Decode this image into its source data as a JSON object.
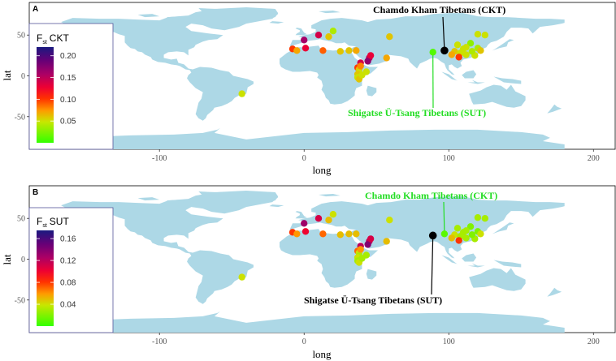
{
  "chart_data": [
    {
      "type": "scatter",
      "panel_label": "A",
      "xlabel": "long",
      "ylabel": "lat",
      "xlim": [
        -190,
        215
      ],
      "ylim": [
        -90,
        90
      ],
      "x_ticks": [
        -100,
        0,
        100,
        200
      ],
      "y_ticks": [
        -50,
        0,
        50
      ],
      "legend": {
        "title_main": "F",
        "title_sub": "st",
        "title_rest": "CKT",
        "ticks": [
          "0.20",
          "0.15",
          "0.10",
          "0.05"
        ],
        "tick_values": [
          0.2,
          0.15,
          0.1,
          0.05
        ],
        "range": [
          0.0,
          0.22
        ],
        "placement": "left"
      },
      "annotations": [
        {
          "text": "Chamdo Kham Tibetans (CKT)",
          "color": "#000000",
          "point": [
            97,
            31
          ]
        },
        {
          "text": "Shigatse Ü-Tsang Tibetans (SUT)",
          "color": "#22dd22",
          "point": [
            89,
            29
          ]
        }
      ],
      "reference": {
        "lon": 97,
        "lat": 31,
        "color": "#000000"
      },
      "points": [
        {
          "lon": 89,
          "lat": 29,
          "v": 0.01
        },
        {
          "lon": -43,
          "lat": -22,
          "v": 0.05
        },
        {
          "lon": 10,
          "lat": 50,
          "v": 0.14
        },
        {
          "lon": 20,
          "lat": 55,
          "v": 0.04
        },
        {
          "lon": 17,
          "lat": 48,
          "v": 0.06
        },
        {
          "lon": 0,
          "lat": 44,
          "v": 0.16
        },
        {
          "lon": 1,
          "lat": 34,
          "v": 0.13
        },
        {
          "lon": -8,
          "lat": 33,
          "v": 0.1
        },
        {
          "lon": -5,
          "lat": 31,
          "v": 0.07
        },
        {
          "lon": 13,
          "lat": 31,
          "v": 0.09
        },
        {
          "lon": 25,
          "lat": 30,
          "v": 0.06
        },
        {
          "lon": 31,
          "lat": 31,
          "v": 0.06
        },
        {
          "lon": 59,
          "lat": 48,
          "v": 0.06
        },
        {
          "lon": 36,
          "lat": 31,
          "v": 0.07
        },
        {
          "lon": 45,
          "lat": 22,
          "v": 0.15
        },
        {
          "lon": 44,
          "lat": 18,
          "v": 0.17
        },
        {
          "lon": 46,
          "lat": 25,
          "v": 0.13
        },
        {
          "lon": 39,
          "lat": 16,
          "v": 0.14
        },
        {
          "lon": 37,
          "lat": 10,
          "v": 0.1
        },
        {
          "lon": 38,
          "lat": 8,
          "v": 0.06
        },
        {
          "lon": 38,
          "lat": 4,
          "v": 0.05
        },
        {
          "lon": 37,
          "lat": 2,
          "v": 0.06
        },
        {
          "lon": 37,
          "lat": -2,
          "v": 0.05
        },
        {
          "lon": 38,
          "lat": -4,
          "v": 0.06
        },
        {
          "lon": 40,
          "lat": 1,
          "v": 0.05
        },
        {
          "lon": 43,
          "lat": 5,
          "v": 0.05
        },
        {
          "lon": 39,
          "lat": 12,
          "v": 0.08
        },
        {
          "lon": 57,
          "lat": 22,
          "v": 0.07
        },
        {
          "lon": 120,
          "lat": 51,
          "v": 0.05
        },
        {
          "lon": 125,
          "lat": 50,
          "v": 0.05
        },
        {
          "lon": 115,
          "lat": 40,
          "v": 0.03
        },
        {
          "lon": 106,
          "lat": 38,
          "v": 0.05
        },
        {
          "lon": 112,
          "lat": 35,
          "v": 0.05
        },
        {
          "lon": 120,
          "lat": 34,
          "v": 0.04
        },
        {
          "lon": 110,
          "lat": 33,
          "v": 0.05
        },
        {
          "lon": 104,
          "lat": 30,
          "v": 0.06
        },
        {
          "lon": 108,
          "lat": 28,
          "v": 0.05
        },
        {
          "lon": 102,
          "lat": 26,
          "v": 0.07
        },
        {
          "lon": 112,
          "lat": 26,
          "v": 0.05
        },
        {
          "lon": 107,
          "lat": 23,
          "v": 0.1
        },
        {
          "lon": 118,
          "lat": 25,
          "v": 0.05
        },
        {
          "lon": 122,
          "lat": 31,
          "v": 0.06
        },
        {
          "lon": 116,
          "lat": 30,
          "v": 0.04
        }
      ]
    },
    {
      "type": "scatter",
      "panel_label": "B",
      "xlabel": "long",
      "ylabel": "lat",
      "xlim": [
        -190,
        215
      ],
      "ylim": [
        -90,
        90
      ],
      "x_ticks": [
        -100,
        0,
        100,
        200
      ],
      "y_ticks": [
        -50,
        0,
        50
      ],
      "legend": {
        "title_main": "F",
        "title_sub": "st",
        "title_rest": "SUT",
        "ticks": [
          "0.16",
          "0.12",
          "0.08",
          "0.04"
        ],
        "tick_values": [
          0.16,
          0.12,
          0.08,
          0.04
        ],
        "range": [
          0.0,
          0.175
        ],
        "placement": "left"
      },
      "annotations": [
        {
          "text": "Chamdo Kham Tibetans (CKT)",
          "color": "#22dd22",
          "point": [
            97,
            31
          ]
        },
        {
          "text": "Shigatse Ü-Tsang Tibetans (SUT)",
          "color": "#000000",
          "point": [
            89,
            29
          ]
        }
      ],
      "reference": {
        "lon": 89,
        "lat": 29,
        "color": "#000000"
      },
      "points": [
        {
          "lon": 97,
          "lat": 31,
          "v": 0.01
        },
        {
          "lon": -43,
          "lat": -22,
          "v": 0.04
        },
        {
          "lon": 10,
          "lat": 50,
          "v": 0.11
        },
        {
          "lon": 20,
          "lat": 55,
          "v": 0.04
        },
        {
          "lon": 17,
          "lat": 48,
          "v": 0.05
        },
        {
          "lon": 0,
          "lat": 44,
          "v": 0.13
        },
        {
          "lon": 1,
          "lat": 34,
          "v": 0.1
        },
        {
          "lon": -8,
          "lat": 33,
          "v": 0.08
        },
        {
          "lon": -5,
          "lat": 31,
          "v": 0.06
        },
        {
          "lon": 13,
          "lat": 31,
          "v": 0.07
        },
        {
          "lon": 25,
          "lat": 30,
          "v": 0.05
        },
        {
          "lon": 31,
          "lat": 31,
          "v": 0.05
        },
        {
          "lon": 59,
          "lat": 48,
          "v": 0.04
        },
        {
          "lon": 36,
          "lat": 31,
          "v": 0.05
        },
        {
          "lon": 45,
          "lat": 22,
          "v": 0.12
        },
        {
          "lon": 44,
          "lat": 18,
          "v": 0.14
        },
        {
          "lon": 46,
          "lat": 25,
          "v": 0.11
        },
        {
          "lon": 39,
          "lat": 16,
          "v": 0.12
        },
        {
          "lon": 37,
          "lat": 10,
          "v": 0.07
        },
        {
          "lon": 38,
          "lat": 8,
          "v": 0.04
        },
        {
          "lon": 38,
          "lat": 4,
          "v": 0.03
        },
        {
          "lon": 37,
          "lat": 2,
          "v": 0.04
        },
        {
          "lon": 37,
          "lat": -2,
          "v": 0.03
        },
        {
          "lon": 38,
          "lat": -4,
          "v": 0.04
        },
        {
          "lon": 40,
          "lat": 1,
          "v": 0.03
        },
        {
          "lon": 43,
          "lat": 5,
          "v": 0.03
        },
        {
          "lon": 39,
          "lat": 12,
          "v": 0.06
        },
        {
          "lon": 57,
          "lat": 22,
          "v": 0.05
        },
        {
          "lon": 120,
          "lat": 51,
          "v": 0.03
        },
        {
          "lon": 125,
          "lat": 50,
          "v": 0.03
        },
        {
          "lon": 115,
          "lat": 40,
          "v": 0.02
        },
        {
          "lon": 106,
          "lat": 38,
          "v": 0.03
        },
        {
          "lon": 112,
          "lat": 35,
          "v": 0.03
        },
        {
          "lon": 120,
          "lat": 34,
          "v": 0.02
        },
        {
          "lon": 110,
          "lat": 33,
          "v": 0.03
        },
        {
          "lon": 104,
          "lat": 30,
          "v": 0.04
        },
        {
          "lon": 108,
          "lat": 28,
          "v": 0.03
        },
        {
          "lon": 102,
          "lat": 26,
          "v": 0.05
        },
        {
          "lon": 112,
          "lat": 26,
          "v": 0.03
        },
        {
          "lon": 107,
          "lat": 23,
          "v": 0.08
        },
        {
          "lon": 118,
          "lat": 25,
          "v": 0.03
        },
        {
          "lon": 122,
          "lat": 31,
          "v": 0.04
        },
        {
          "lon": 116,
          "lat": 30,
          "v": 0.02
        }
      ]
    }
  ]
}
